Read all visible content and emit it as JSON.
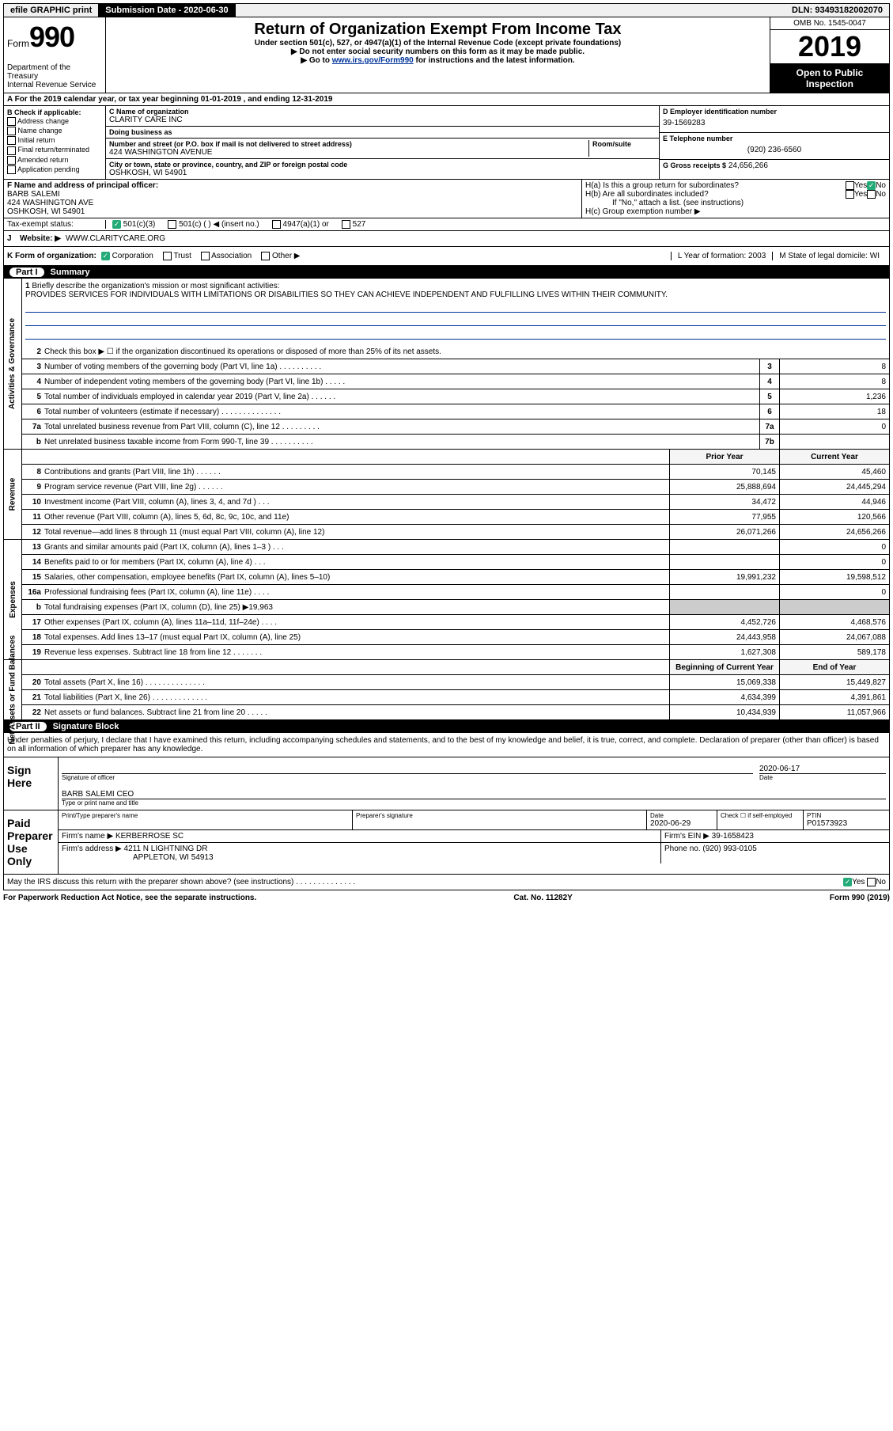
{
  "top_bar": {
    "efile": "efile GRAPHIC print",
    "submission_label": "Submission Date - 2020-06-30",
    "dln": "DLN: 93493182002070"
  },
  "header": {
    "form_label": "Form",
    "form_number": "990",
    "dept": "Department of the Treasury\nInternal Revenue Service",
    "title": "Return of Organization Exempt From Income Tax",
    "subtitle": "Under section 501(c), 527, or 4947(a)(1) of the Internal Revenue Code (except private foundations)",
    "note1": "▶ Do not enter social security numbers on this form as it may be made public.",
    "note2_pre": "▶ Go to ",
    "note2_link": "www.irs.gov/Form990",
    "note2_post": " for instructions and the latest information.",
    "omb": "OMB No. 1545-0047",
    "year": "2019",
    "open_public": "Open to Public Inspection"
  },
  "row_a": "A For the 2019 calendar year, or tax year beginning 01-01-2019   , and ending 12-31-2019",
  "box_b": {
    "label": "B Check if applicable:",
    "items": [
      "Address change",
      "Name change",
      "Initial return",
      "Final return/terminated",
      "Amended return",
      "Application pending"
    ]
  },
  "box_c": {
    "name_lbl": "C Name of organization",
    "name": "CLARITY CARE INC",
    "dba_lbl": "Doing business as",
    "addr_lbl": "Number and street (or P.O. box if mail is not delivered to street address)",
    "room_lbl": "Room/suite",
    "addr": "424 WASHINGTON AVENUE",
    "city_lbl": "City or town, state or province, country, and ZIP or foreign postal code",
    "city": "OSHKOSH, WI  54901"
  },
  "box_d": {
    "ein_lbl": "D Employer identification number",
    "ein": "39-1569283",
    "phone_lbl": "E Telephone number",
    "phone": "(920) 236-6560",
    "gross_lbl": "G Gross receipts $",
    "gross": "24,656,266"
  },
  "box_f": {
    "lbl": "F Name and address of principal officer:",
    "name": "BARB SALEMI",
    "addr1": "424 WASHINGTON AVE",
    "addr2": "OSHKOSH, WI  54901"
  },
  "box_h": {
    "ha": "H(a)  Is this a group return for subordinates?",
    "hb": "H(b)  Are all subordinates included?",
    "hb_note": "If \"No,\" attach a list. (see instructions)",
    "hc": "H(c)  Group exemption number ▶",
    "yes": "Yes",
    "no": "No"
  },
  "tax_status": {
    "lbl": "Tax-exempt status:",
    "opt1": "501(c)(3)",
    "opt2": "501(c) (   ) ◀ (insert no.)",
    "opt3": "4947(a)(1) or",
    "opt4": "527"
  },
  "row_j": {
    "lbl": "J",
    "website_lbl": "Website: ▶",
    "website": "WWW.CLARITYCARE.ORG"
  },
  "row_k": {
    "lbl": "K Form of organization:",
    "opts": [
      "Corporation",
      "Trust",
      "Association",
      "Other ▶"
    ],
    "l": "L Year of formation: 2003",
    "m": "M State of legal domicile: WI"
  },
  "part1": {
    "num": "Part I",
    "title": "Summary"
  },
  "mission": {
    "num": "1",
    "lbl": "Briefly describe the organization's mission or most significant activities:",
    "text": "PROVIDES SERVICES FOR INDIVIDUALS WITH LIMITATIONS OR DISABILITIES SO THEY CAN ACHIEVE INDEPENDENT AND FULFILLING LIVES WITHIN THEIR COMMUNITY."
  },
  "gov_lines": [
    {
      "n": "2",
      "d": "Check this box ▶ ☐  if the organization discontinued its operations or disposed of more than 25% of its net assets."
    },
    {
      "n": "3",
      "d": "Number of voting members of the governing body (Part VI, line 1a)  .   .   .   .   .   .   .   .   .   .",
      "box": "3",
      "v": "8"
    },
    {
      "n": "4",
      "d": "Number of independent voting members of the governing body (Part VI, line 1b)  .   .   .   .   .",
      "box": "4",
      "v": "8"
    },
    {
      "n": "5",
      "d": "Total number of individuals employed in calendar year 2019 (Part V, line 2a)  .   .   .   .   .   .",
      "box": "5",
      "v": "1,236"
    },
    {
      "n": "6",
      "d": "Total number of volunteers (estimate if necessary)   .   .   .   .   .   .   .   .   .   .   .   .   .   .",
      "box": "6",
      "v": "18"
    },
    {
      "n": "7a",
      "d": "Total unrelated business revenue from Part VIII, column (C), line 12  .   .   .   .   .   .   .   .   .",
      "box": "7a",
      "v": "0"
    },
    {
      "n": "b",
      "d": "Net unrelated business taxable income from Form 990-T, line 39   .   .   .   .   .   .   .   .   .   .",
      "box": "7b",
      "v": ""
    }
  ],
  "col_headers": {
    "prior": "Prior Year",
    "current": "Current Year"
  },
  "revenue_lines": [
    {
      "n": "8",
      "d": "Contributions and grants (Part VIII, line 1h)   .   .   .   .   .   .",
      "p": "70,145",
      "c": "45,460"
    },
    {
      "n": "9",
      "d": "Program service revenue (Part VIII, line 2g)   .   .   .   .   .   .",
      "p": "25,888,694",
      "c": "24,445,294"
    },
    {
      "n": "10",
      "d": "Investment income (Part VIII, column (A), lines 3, 4, and 7d )   .   .   .",
      "p": "34,472",
      "c": "44,946"
    },
    {
      "n": "11",
      "d": "Other revenue (Part VIII, column (A), lines 5, 6d, 8c, 9c, 10c, and 11e)",
      "p": "77,955",
      "c": "120,566"
    },
    {
      "n": "12",
      "d": "Total revenue—add lines 8 through 11 (must equal Part VIII, column (A), line 12)",
      "p": "26,071,266",
      "c": "24,656,266"
    }
  ],
  "expense_lines": [
    {
      "n": "13",
      "d": "Grants and similar amounts paid (Part IX, column (A), lines 1–3 )  .   .   .",
      "p": "",
      "c": "0"
    },
    {
      "n": "14",
      "d": "Benefits paid to or for members (Part IX, column (A), line 4)   .   .   .",
      "p": "",
      "c": "0"
    },
    {
      "n": "15",
      "d": "Salaries, other compensation, employee benefits (Part IX, column (A), lines 5–10)",
      "p": "19,991,232",
      "c": "19,598,512"
    },
    {
      "n": "16a",
      "d": "Professional fundraising fees (Part IX, column (A), line 11e)   .   .   .   .",
      "p": "",
      "c": "0"
    },
    {
      "n": "b",
      "d": "Total fundraising expenses (Part IX, column (D), line 25) ▶19,963",
      "p": "GREY",
      "c": "GREY"
    },
    {
      "n": "17",
      "d": "Other expenses (Part IX, column (A), lines 11a–11d, 11f–24e)   .   .   .   .",
      "p": "4,452,726",
      "c": "4,468,576"
    },
    {
      "n": "18",
      "d": "Total expenses. Add lines 13–17 (must equal Part IX, column (A), line 25)",
      "p": "24,443,958",
      "c": "24,067,088"
    },
    {
      "n": "19",
      "d": "Revenue less expenses. Subtract line 18 from line 12  .   .   .   .   .   .   .",
      "p": "1,627,308",
      "c": "589,178"
    }
  ],
  "net_headers": {
    "begin": "Beginning of Current Year",
    "end": "End of Year"
  },
  "net_lines": [
    {
      "n": "20",
      "d": "Total assets (Part X, line 16)  .   .   .   .   .   .   .   .   .   .   .   .   .   .",
      "p": "15,069,338",
      "c": "15,449,827"
    },
    {
      "n": "21",
      "d": "Total liabilities (Part X, line 26)  .   .   .   .   .   .   .   .   .   .   .   .   .",
      "p": "4,634,399",
      "c": "4,391,861"
    },
    {
      "n": "22",
      "d": "Net assets or fund balances. Subtract line 21 from line 20  .   .   .   .   .",
      "p": "10,434,939",
      "c": "11,057,966"
    }
  ],
  "part2": {
    "num": "Part II",
    "title": "Signature Block"
  },
  "sig": {
    "declaration": "Under penalties of perjury, I declare that I have examined this return, including accompanying schedules and statements, and to the best of my knowledge and belief, it is true, correct, and complete. Declaration of preparer (other than officer) is based on all information of which preparer has any knowledge.",
    "sign_here": "Sign Here",
    "sig_officer": "Signature of officer",
    "date_lbl": "Date",
    "date": "2020-06-17",
    "name_title": "BARB SALEMI CEO",
    "name_title_lbl": "Type or print name and title"
  },
  "preparer": {
    "label": "Paid Preparer Use Only",
    "h_name": "Print/Type preparer's name",
    "h_sig": "Preparer's signature",
    "h_date": "Date",
    "date": "2020-06-29",
    "h_check": "Check ☐ if self-employed",
    "h_ptin": "PTIN",
    "ptin": "P01573923",
    "firm_name_lbl": "Firm's name    ▶",
    "firm_name": "KERBERROSE SC",
    "firm_ein_lbl": "Firm's EIN ▶",
    "firm_ein": "39-1658423",
    "firm_addr_lbl": "Firm's address ▶",
    "firm_addr1": "4211 N LIGHTNING DR",
    "firm_addr2": "APPLETON, WI  54913",
    "phone_lbl": "Phone no.",
    "phone": "(920) 993-0105",
    "discuss": "May the IRS discuss this return with the preparer shown above? (see instructions)   .   .   .   .   .   .   .   .   .   .   .   .   .   .",
    "yes": "Yes",
    "no": "No"
  },
  "footer": {
    "left": "For Paperwork Reduction Act Notice, see the separate instructions.",
    "mid": "Cat. No. 11282Y",
    "right": "Form 990 (2019)"
  },
  "side_labels": {
    "gov": "Activities & Governance",
    "rev": "Revenue",
    "exp": "Expenses",
    "net": "Net Assets or Fund Balances"
  }
}
